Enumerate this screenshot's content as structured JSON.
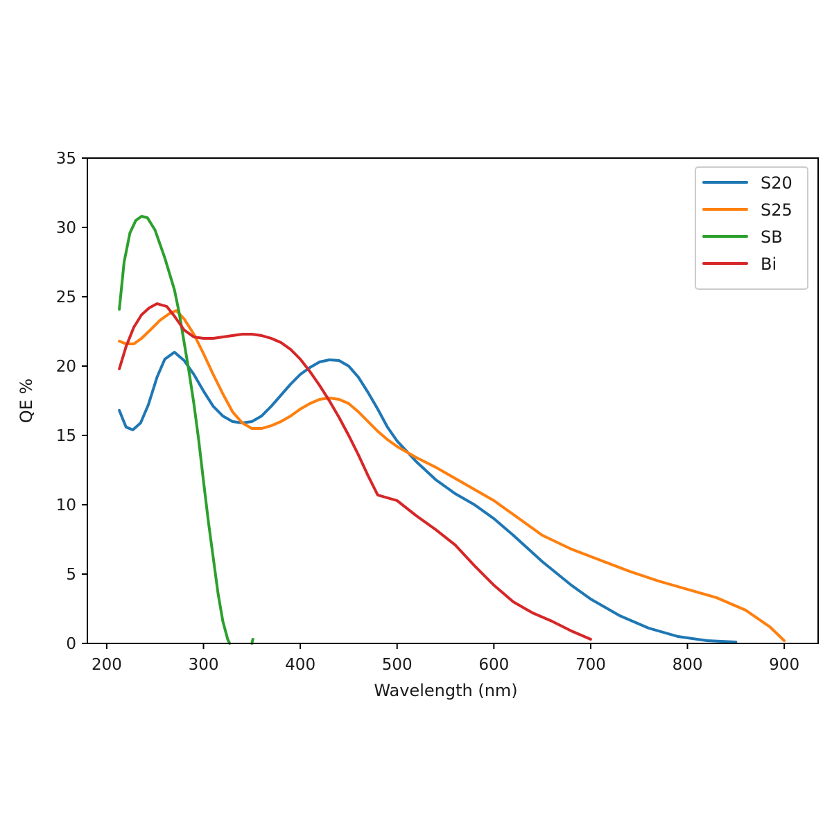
{
  "chart_data": {
    "type": "line",
    "title": "",
    "xlabel": "Wavelength (nm)",
    "ylabel": "QE %",
    "xlim": [
      180,
      935
    ],
    "ylim": [
      0,
      35
    ],
    "xticks": [
      200,
      300,
      400,
      500,
      600,
      700,
      800,
      900
    ],
    "yticks": [
      0,
      5,
      10,
      15,
      20,
      25,
      30,
      35
    ],
    "xtick_labels": [
      "200",
      "300",
      "400",
      "500",
      "600",
      "700",
      "800",
      "900"
    ],
    "ytick_labels": [
      "0",
      "5",
      "10",
      "15",
      "20",
      "25",
      "30",
      "35"
    ],
    "grid": false,
    "legend_position": "top-right",
    "series": [
      {
        "name": "S20",
        "color": "#1f77b4",
        "points": [
          [
            213,
            16.8
          ],
          [
            220,
            15.6
          ],
          [
            227,
            15.4
          ],
          [
            235,
            15.9
          ],
          [
            243,
            17.2
          ],
          [
            252,
            19.2
          ],
          [
            260,
            20.5
          ],
          [
            270,
            21.0
          ],
          [
            280,
            20.4
          ],
          [
            290,
            19.4
          ],
          [
            300,
            18.2
          ],
          [
            310,
            17.1
          ],
          [
            320,
            16.4
          ],
          [
            330,
            16.0
          ],
          [
            340,
            15.9
          ],
          [
            350,
            16.0
          ],
          [
            360,
            16.4
          ],
          [
            370,
            17.1
          ],
          [
            380,
            17.9
          ],
          [
            390,
            18.7
          ],
          [
            400,
            19.4
          ],
          [
            410,
            19.9
          ],
          [
            420,
            20.3
          ],
          [
            430,
            20.45
          ],
          [
            440,
            20.4
          ],
          [
            450,
            20.0
          ],
          [
            460,
            19.2
          ],
          [
            470,
            18.1
          ],
          [
            480,
            16.9
          ],
          [
            490,
            15.6
          ],
          [
            500,
            14.6
          ],
          [
            520,
            13.1
          ],
          [
            540,
            11.8
          ],
          [
            560,
            10.8
          ],
          [
            580,
            10.0
          ],
          [
            600,
            9.0
          ],
          [
            620,
            7.8
          ],
          [
            650,
            5.9
          ],
          [
            680,
            4.2
          ],
          [
            700,
            3.2
          ],
          [
            730,
            2.0
          ],
          [
            760,
            1.1
          ],
          [
            790,
            0.5
          ],
          [
            820,
            0.2
          ],
          [
            850,
            0.1
          ]
        ]
      },
      {
        "name": "S25",
        "color": "#ff7f0e",
        "points": [
          [
            213,
            21.8
          ],
          [
            220,
            21.6
          ],
          [
            228,
            21.6
          ],
          [
            236,
            22.0
          ],
          [
            245,
            22.6
          ],
          [
            255,
            23.3
          ],
          [
            265,
            23.8
          ],
          [
            272,
            24.0
          ],
          [
            280,
            23.4
          ],
          [
            290,
            22.3
          ],
          [
            300,
            20.9
          ],
          [
            310,
            19.4
          ],
          [
            320,
            18.0
          ],
          [
            330,
            16.7
          ],
          [
            340,
            15.9
          ],
          [
            350,
            15.5
          ],
          [
            360,
            15.5
          ],
          [
            370,
            15.7
          ],
          [
            380,
            16.0
          ],
          [
            390,
            16.4
          ],
          [
            400,
            16.9
          ],
          [
            410,
            17.3
          ],
          [
            420,
            17.6
          ],
          [
            430,
            17.7
          ],
          [
            440,
            17.6
          ],
          [
            450,
            17.3
          ],
          [
            460,
            16.7
          ],
          [
            470,
            16.0
          ],
          [
            480,
            15.3
          ],
          [
            490,
            14.7
          ],
          [
            500,
            14.2
          ],
          [
            520,
            13.4
          ],
          [
            540,
            12.7
          ],
          [
            560,
            11.9
          ],
          [
            580,
            11.1
          ],
          [
            600,
            10.3
          ],
          [
            620,
            9.3
          ],
          [
            650,
            7.8
          ],
          [
            680,
            6.8
          ],
          [
            710,
            6.0
          ],
          [
            740,
            5.2
          ],
          [
            770,
            4.5
          ],
          [
            800,
            3.9
          ],
          [
            830,
            3.3
          ],
          [
            860,
            2.4
          ],
          [
            885,
            1.2
          ],
          [
            900,
            0.2
          ]
        ]
      },
      {
        "name": "SB",
        "color": "#2ca02c",
        "points": [
          [
            213,
            24.1
          ],
          [
            218,
            27.5
          ],
          [
            224,
            29.6
          ],
          [
            230,
            30.5
          ],
          [
            236,
            30.8
          ],
          [
            242,
            30.7
          ],
          [
            250,
            29.8
          ],
          [
            260,
            27.8
          ],
          [
            270,
            25.5
          ],
          [
            275,
            23.8
          ],
          [
            280,
            21.7
          ],
          [
            285,
            19.6
          ],
          [
            290,
            17.3
          ],
          [
            295,
            14.7
          ],
          [
            300,
            11.7
          ],
          [
            305,
            8.8
          ],
          [
            310,
            6.2
          ],
          [
            315,
            3.6
          ],
          [
            320,
            1.6
          ],
          [
            325,
            0.3
          ],
          [
            327,
            0.0
          ]
        ]
      },
      {
        "name": "Bi",
        "color": "#d62728",
        "points": [
          [
            213,
            19.8
          ],
          [
            220,
            21.4
          ],
          [
            228,
            22.8
          ],
          [
            236,
            23.7
          ],
          [
            244,
            24.2
          ],
          [
            252,
            24.5
          ],
          [
            262,
            24.3
          ],
          [
            270,
            23.6
          ],
          [
            280,
            22.6
          ],
          [
            290,
            22.1
          ],
          [
            300,
            22.0
          ],
          [
            310,
            22.0
          ],
          [
            320,
            22.1
          ],
          [
            330,
            22.2
          ],
          [
            340,
            22.3
          ],
          [
            350,
            22.3
          ],
          [
            360,
            22.2
          ],
          [
            370,
            22.0
          ],
          [
            380,
            21.7
          ],
          [
            390,
            21.2
          ],
          [
            400,
            20.5
          ],
          [
            410,
            19.6
          ],
          [
            420,
            18.6
          ],
          [
            430,
            17.5
          ],
          [
            440,
            16.3
          ],
          [
            450,
            15.0
          ],
          [
            460,
            13.6
          ],
          [
            470,
            12.1
          ],
          [
            480,
            10.7
          ],
          [
            500,
            10.3
          ],
          [
            520,
            9.2
          ],
          [
            540,
            8.2
          ],
          [
            560,
            7.1
          ],
          [
            580,
            5.6
          ],
          [
            600,
            4.2
          ],
          [
            620,
            3.0
          ],
          [
            640,
            2.2
          ],
          [
            660,
            1.6
          ],
          [
            680,
            0.9
          ],
          [
            700,
            0.3
          ]
        ]
      }
    ],
    "extra_segments": [
      {
        "series": "SB",
        "color": "#2ca02c",
        "points": [
          [
            350,
            0.0
          ],
          [
            351,
            0.3
          ]
        ]
      }
    ]
  }
}
